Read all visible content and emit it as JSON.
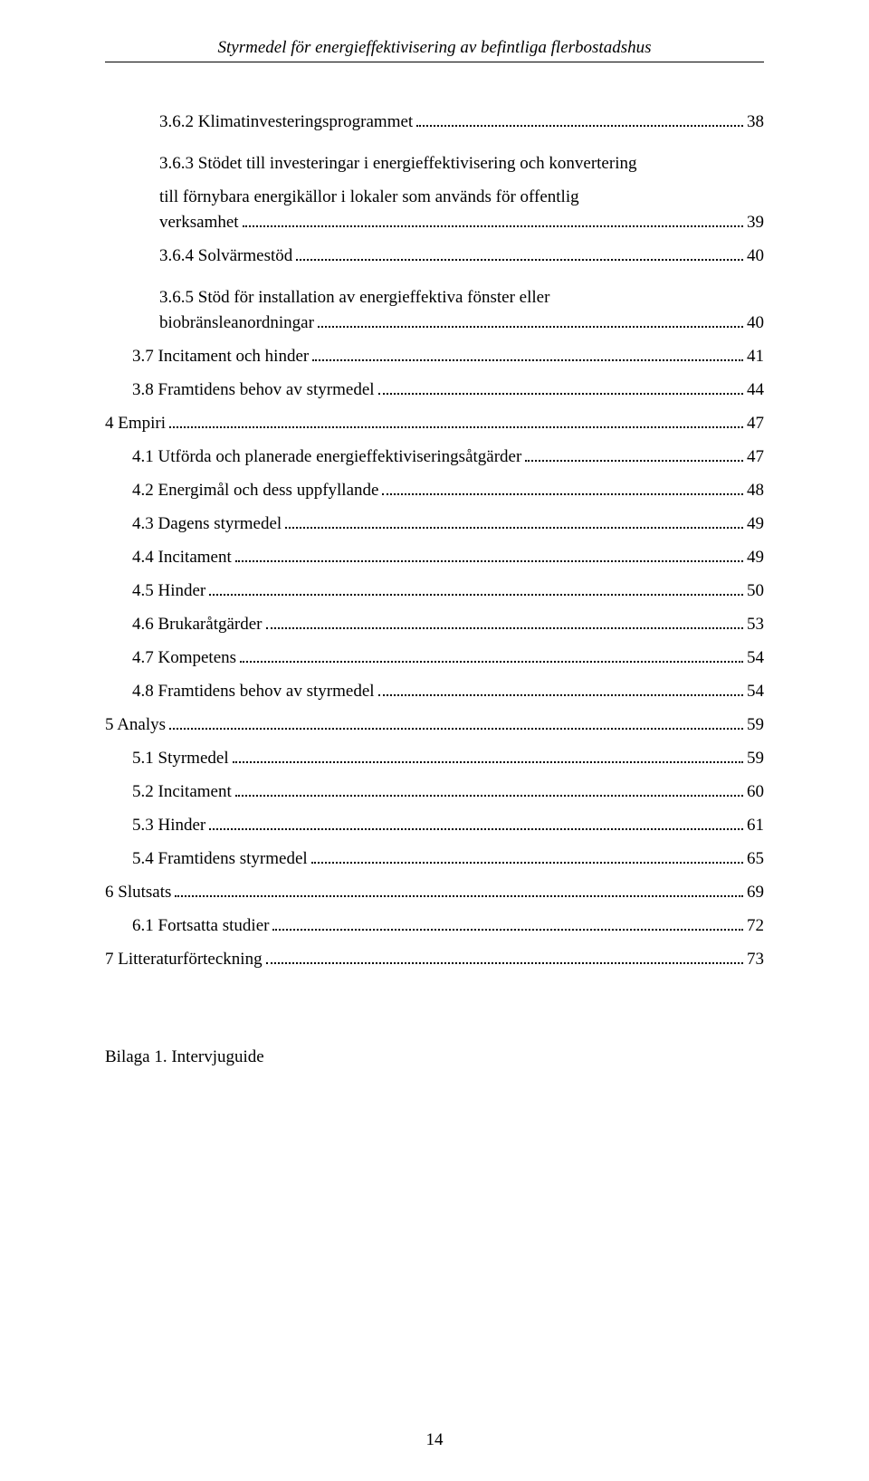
{
  "runningHead": "Styrmedel för energieffektivisering av befintliga flerbostadshus",
  "toc": [
    {
      "kind": "row",
      "indent": 2,
      "label": "3.6.2 Klimatinvesteringsprogrammet",
      "page": "38"
    },
    {
      "kind": "multi",
      "indent": 2,
      "lines": [
        "3.6.3 Stödet till investeringar i energieffektivisering och konvertering",
        "till förnybara energikällor i lokaler som används för offentlig"
      ],
      "lastLabel": "verksamhet",
      "page": "39"
    },
    {
      "kind": "row",
      "indent": 2,
      "label": "3.6.4 Solvärmestöd",
      "page": "40"
    },
    {
      "kind": "multi",
      "indent": 2,
      "lines": [
        "3.6.5   Stöd   för   installation   av   energieffektiva   fönster   eller"
      ],
      "lastLabel": "biobränsleanordningar",
      "page": "40"
    },
    {
      "kind": "row",
      "indent": 1,
      "label": "3.7 Incitament och hinder",
      "page": "41"
    },
    {
      "kind": "row",
      "indent": 1,
      "label": "3.8 Framtidens behov av styrmedel",
      "page": "44"
    },
    {
      "kind": "row",
      "indent": 0,
      "label": "4 Empiri",
      "page": "47"
    },
    {
      "kind": "row",
      "indent": 1,
      "label": "4.1 Utförda och planerade energieffektiviseringsåtgärder",
      "page": "47"
    },
    {
      "kind": "row",
      "indent": 1,
      "label": "4.2 Energimål och dess uppfyllande",
      "page": "48"
    },
    {
      "kind": "row",
      "indent": 1,
      "label": "4.3 Dagens styrmedel",
      "page": "49"
    },
    {
      "kind": "row",
      "indent": 1,
      "label": "4.4 Incitament",
      "page": "49"
    },
    {
      "kind": "row",
      "indent": 1,
      "label": "4.5 Hinder",
      "page": "50"
    },
    {
      "kind": "row",
      "indent": 1,
      "label": "4.6 Brukaråtgärder",
      "page": "53"
    },
    {
      "kind": "row",
      "indent": 1,
      "label": "4.7 Kompetens",
      "page": "54"
    },
    {
      "kind": "row",
      "indent": 1,
      "label": "4.8 Framtidens behov av styrmedel",
      "page": "54"
    },
    {
      "kind": "row",
      "indent": 0,
      "label": "5 Analys",
      "page": "59"
    },
    {
      "kind": "row",
      "indent": 1,
      "label": "5.1 Styrmedel",
      "page": "59"
    },
    {
      "kind": "row",
      "indent": 1,
      "label": "5.2 Incitament",
      "page": "60"
    },
    {
      "kind": "row",
      "indent": 1,
      "label": "5.3 Hinder",
      "page": "61"
    },
    {
      "kind": "row",
      "indent": 1,
      "label": "5.4 Framtidens styrmedel",
      "page": "65"
    },
    {
      "kind": "row",
      "indent": 0,
      "label": "6 Slutsats",
      "page": "69"
    },
    {
      "kind": "row",
      "indent": 1,
      "label": "6.1 Fortsatta studier",
      "page": "72"
    },
    {
      "kind": "row",
      "indent": 0,
      "label": "7 Litteraturförteckning",
      "page": "73"
    }
  ],
  "appendix": "Bilaga 1. Intervjuguide",
  "pageNumber": "14"
}
